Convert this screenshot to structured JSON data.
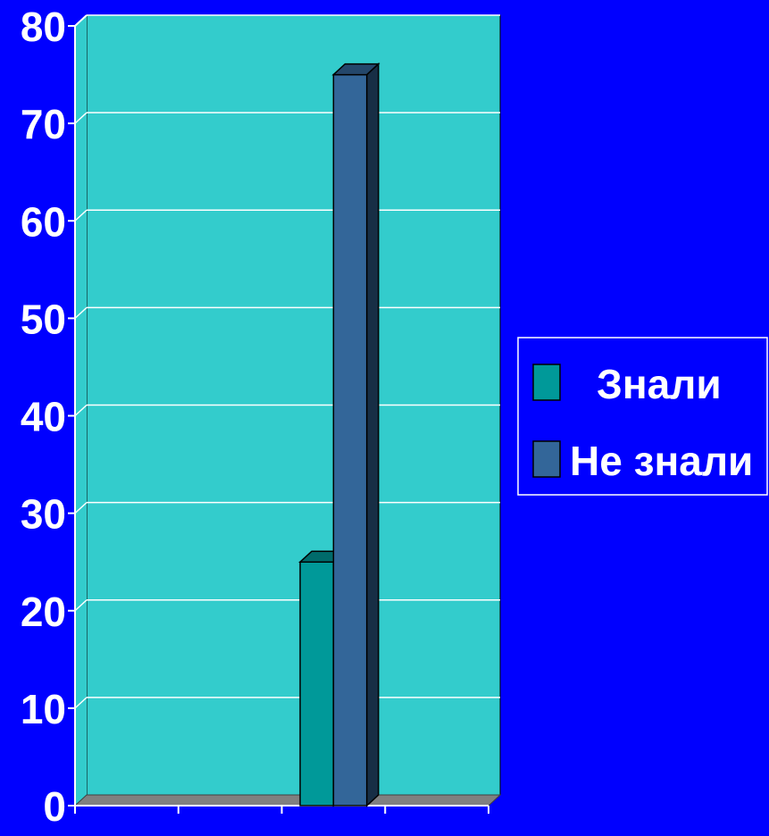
{
  "chart_data": {
    "type": "bar",
    "categories": [
      "",
      "",
      "",
      ""
    ],
    "series": [
      {
        "name": "Знали",
        "values": [
          null,
          null,
          25,
          null
        ]
      },
      {
        "name": "Не знали",
        "values": [
          null,
          null,
          75,
          null
        ]
      }
    ],
    "title": "",
    "xlabel": "",
    "ylabel": "",
    "ylim": [
      0,
      80
    ],
    "yticks": [
      "0",
      "10",
      "20",
      "30",
      "40",
      "50",
      "60",
      "70",
      "80"
    ],
    "grid": true,
    "three_d": true,
    "legend_position": "right"
  },
  "colors": {
    "background": "#0000FF",
    "plot_wall": "#33CCCC",
    "floor": "#808080",
    "gridline": "#FFFFFF",
    "series_1": "#009999",
    "series_2": "#336699",
    "text": "#FFFFFF"
  }
}
